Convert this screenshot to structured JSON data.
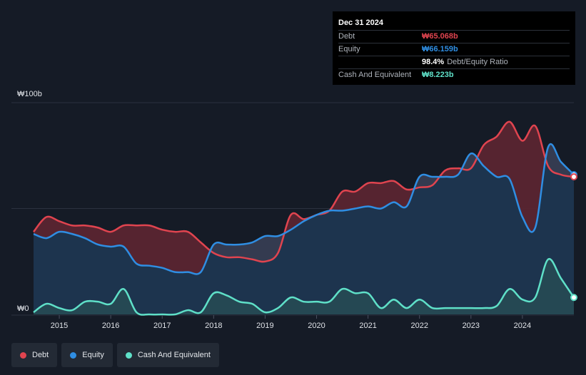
{
  "tooltip": {
    "date": "Dec 31 2024",
    "rows": [
      {
        "label": "Debt",
        "value": "₩65.068b",
        "color": "#e0444f"
      },
      {
        "label": "Equity",
        "value": "₩66.159b",
        "color": "#2f8ee3"
      },
      {
        "label": "",
        "value": "98.4%",
        "suffix": "Debt/Equity Ratio",
        "color": "#ffffff"
      },
      {
        "label": "Cash And Equivalent",
        "value": "₩8.223b",
        "color": "#5fe0c8"
      }
    ]
  },
  "legend": [
    {
      "label": "Debt",
      "color": "#e0444f"
    },
    {
      "label": "Equity",
      "color": "#2f8ee3"
    },
    {
      "label": "Cash And Equivalent",
      "color": "#5fe0c8"
    }
  ],
  "chart_data": {
    "type": "area",
    "y_unit_labels": {
      "top": "₩100b",
      "bottom": "₩0"
    },
    "ylim": [
      0,
      100
    ],
    "xlim": [
      2014.5,
      2025.0
    ],
    "x_ticks": [
      "2015",
      "2016",
      "2017",
      "2018",
      "2019",
      "2020",
      "2021",
      "2022",
      "2023",
      "2024"
    ],
    "x_tick_values": [
      2015,
      2016,
      2017,
      2018,
      2019,
      2020,
      2021,
      2022,
      2023,
      2024
    ],
    "grid": "horizontal",
    "series": [
      {
        "name": "Debt",
        "color": "#e0444f",
        "x": [
          2014.5,
          2014.75,
          2015.0,
          2015.25,
          2015.5,
          2015.75,
          2016.0,
          2016.25,
          2016.5,
          2016.75,
          2017.0,
          2017.25,
          2017.5,
          2017.75,
          2018.0,
          2018.25,
          2018.5,
          2018.75,
          2019.0,
          2019.25,
          2019.5,
          2019.75,
          2020.0,
          2020.25,
          2020.5,
          2020.75,
          2021.0,
          2021.25,
          2021.5,
          2021.75,
          2022.0,
          2022.25,
          2022.5,
          2022.75,
          2023.0,
          2023.25,
          2023.5,
          2023.75,
          2024.0,
          2024.25,
          2024.5,
          2024.75,
          2025.0
        ],
        "values": [
          39,
          46,
          44,
          42,
          42,
          41,
          39,
          42,
          42,
          42,
          40,
          39,
          39,
          34,
          29,
          27,
          27,
          26,
          25,
          29,
          47,
          45,
          47,
          49,
          58,
          58,
          62,
          62,
          63,
          59,
          60,
          61,
          68,
          69,
          69,
          80,
          84,
          91,
          82,
          89,
          70,
          66,
          65
        ]
      },
      {
        "name": "Equity",
        "color": "#2f8ee3",
        "x": [
          2014.5,
          2014.75,
          2015.0,
          2015.25,
          2015.5,
          2015.75,
          2016.0,
          2016.25,
          2016.5,
          2016.75,
          2017.0,
          2017.25,
          2017.5,
          2017.75,
          2018.0,
          2018.25,
          2018.5,
          2018.75,
          2019.0,
          2019.25,
          2019.5,
          2019.75,
          2020.0,
          2020.25,
          2020.5,
          2020.75,
          2021.0,
          2021.25,
          2021.5,
          2021.75,
          2022.0,
          2022.25,
          2022.5,
          2022.75,
          2023.0,
          2023.25,
          2023.5,
          2023.75,
          2024.0,
          2024.25,
          2024.5,
          2024.75,
          2025.0
        ],
        "values": [
          38,
          36,
          39,
          38,
          36,
          33,
          32,
          32,
          24,
          23,
          22,
          20,
          20,
          20,
          33,
          33,
          33,
          34,
          37,
          37,
          40,
          44,
          47,
          49,
          49,
          50,
          51,
          50,
          53,
          51,
          65,
          65,
          65,
          66,
          76,
          70,
          65,
          64,
          46,
          41,
          79,
          72,
          66
        ]
      },
      {
        "name": "Cash And Equivalent",
        "color": "#5fe0c8",
        "x": [
          2014.5,
          2014.75,
          2015.0,
          2015.25,
          2015.5,
          2015.75,
          2016.0,
          2016.25,
          2016.5,
          2016.75,
          2017.0,
          2017.25,
          2017.5,
          2017.75,
          2018.0,
          2018.25,
          2018.5,
          2018.75,
          2019.0,
          2019.25,
          2019.5,
          2019.75,
          2020.0,
          2020.25,
          2020.5,
          2020.75,
          2021.0,
          2021.25,
          2021.5,
          2021.75,
          2022.0,
          2022.25,
          2022.5,
          2022.75,
          2023.0,
          2023.25,
          2023.5,
          2023.75,
          2024.0,
          2024.25,
          2024.5,
          2024.75,
          2025.0
        ],
        "values": [
          1,
          5,
          3,
          2,
          6,
          6,
          5,
          12,
          1,
          0,
          0,
          0,
          2,
          1,
          10,
          9,
          6,
          5,
          1,
          3,
          8,
          6,
          6,
          6,
          12,
          10,
          10,
          3,
          7,
          3,
          7,
          3,
          3,
          3,
          3,
          3,
          4,
          12,
          7,
          8,
          26,
          17,
          8
        ]
      }
    ]
  }
}
